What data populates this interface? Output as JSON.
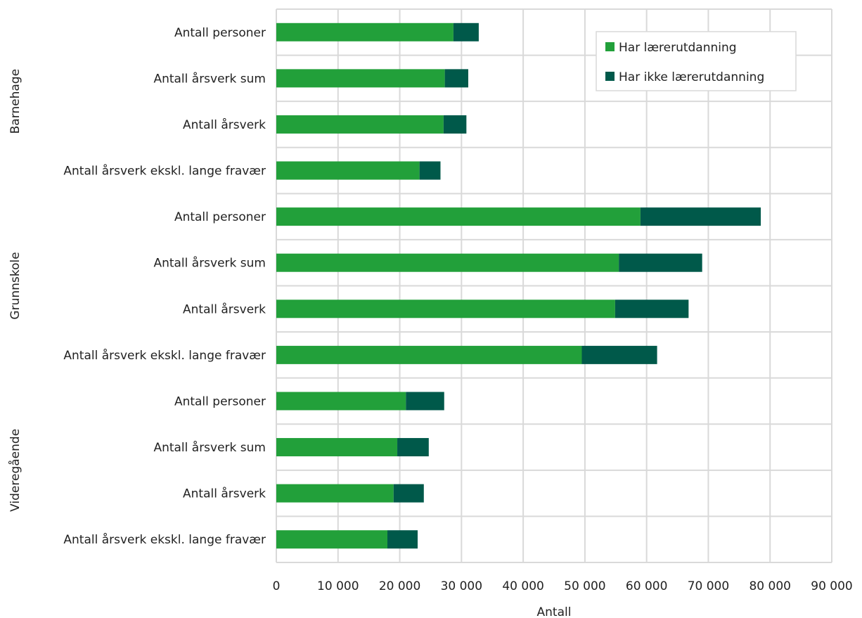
{
  "chart_data": {
    "type": "bar",
    "orientation": "horizontal",
    "stacked": true,
    "xlabel": "Antall",
    "ylabel": "",
    "xlim": [
      0,
      90000
    ],
    "x_ticks": [
      0,
      10000,
      20000,
      30000,
      40000,
      50000,
      60000,
      70000,
      80000,
      90000
    ],
    "x_tick_labels": [
      "0",
      "10 000",
      "20 000",
      "30 000",
      "40 000",
      "50 000",
      "60 000",
      "70 000",
      "80 000",
      "90 000"
    ],
    "grid": true,
    "legend_position": "top-right",
    "groups": [
      {
        "label": "Barnehage",
        "start": 0,
        "count": 4
      },
      {
        "label": "Grunnskole",
        "start": 4,
        "count": 4
      },
      {
        "label": "Videregående",
        "start": 8,
        "count": 4
      }
    ],
    "categories": [
      "Antall personer",
      "Antall årsverk sum",
      "Antall årsverk",
      "Antall årsverk ekskl. lange fravær",
      "Antall personer",
      "Antall årsverk sum",
      "Antall årsverk",
      "Antall årsverk ekskl. lange fravær",
      "Antall personer",
      "Antall årsverk sum",
      "Antall årsverk",
      "Antall årsverk ekskl. lange fravær"
    ],
    "series": [
      {
        "name": "Har lærerutdanning",
        "color": "#22a03a",
        "values": [
          28700,
          27300,
          27100,
          23200,
          59000,
          55500,
          54900,
          49500,
          21000,
          19600,
          19000,
          18000
        ]
      },
      {
        "name": "Har ikke lærerutdanning",
        "color": "#00594a",
        "values": [
          4100,
          3800,
          3700,
          3400,
          19500,
          13500,
          11900,
          12200,
          6200,
          5100,
          4900,
          4900
        ]
      }
    ]
  }
}
